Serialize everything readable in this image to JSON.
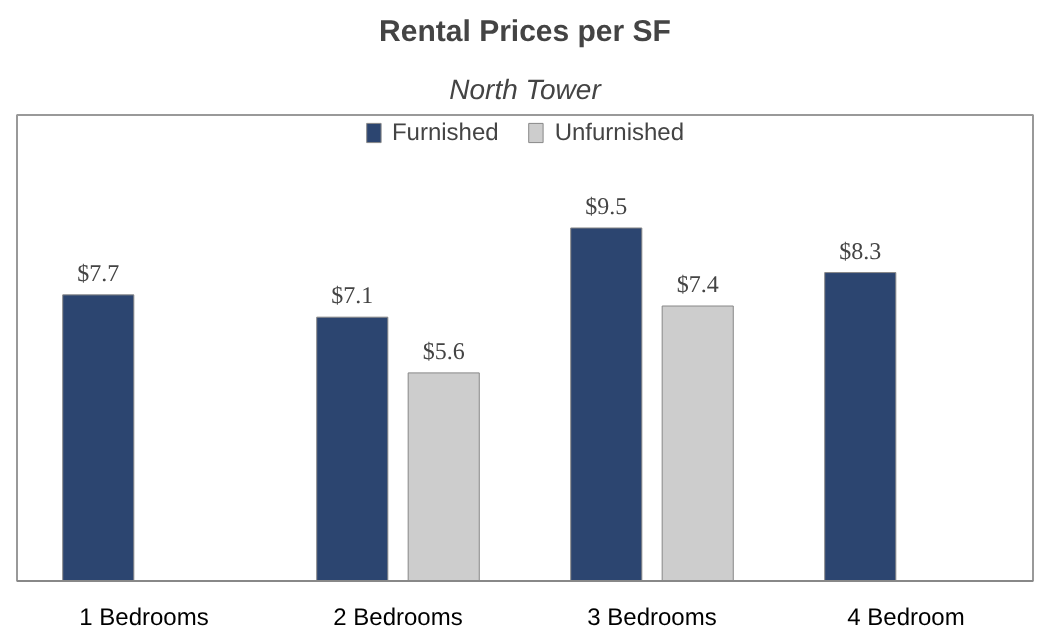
{
  "chart_data": {
    "type": "bar",
    "title": "Rental Prices per SF",
    "subtitle": "North Tower",
    "categories": [
      "1 Bedrooms",
      "2 Bedrooms",
      "3 Bedrooms",
      "4 Bedroom"
    ],
    "series": [
      {
        "name": "Furnished",
        "color": "#2c4570",
        "values": [
          7.7,
          7.1,
          9.5,
          8.3
        ],
        "value_labels": [
          "$7.7",
          "$7.1",
          "$9.5",
          "$8.3"
        ]
      },
      {
        "name": "Unfurnished",
        "color": "#cdcdcd",
        "values": [
          null,
          5.6,
          7.4,
          null
        ],
        "value_labels": [
          null,
          "$5.6",
          "$7.4",
          null
        ]
      }
    ],
    "legend": "top"
  }
}
